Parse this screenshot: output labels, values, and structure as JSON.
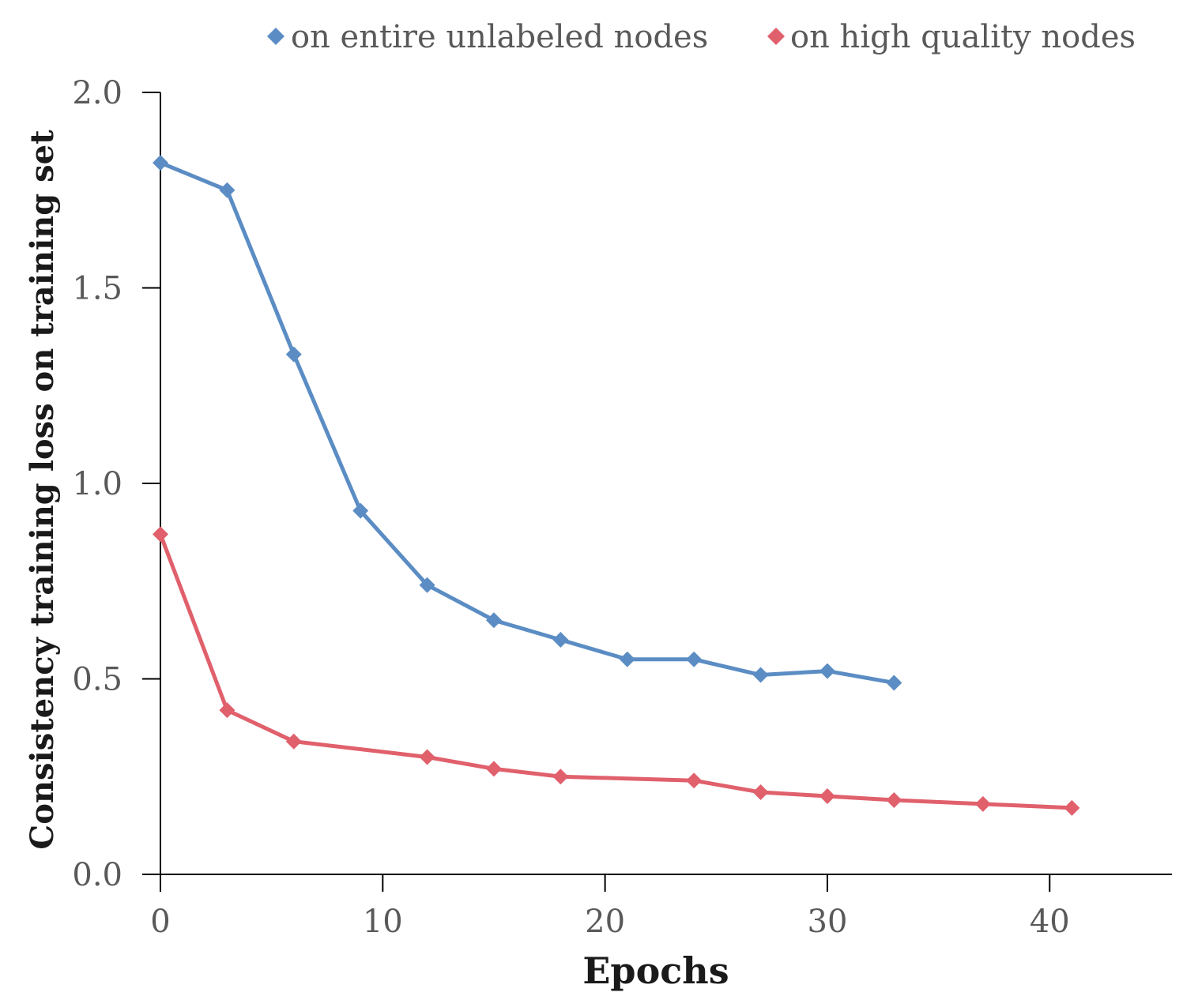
{
  "chart_data": {
    "type": "line",
    "title": "",
    "xlabel": "Epochs",
    "ylabel": "Consistency training loss on training set",
    "xlim": [
      0,
      45.5
    ],
    "ylim": [
      0,
      2.0
    ],
    "x_ticks": [
      0,
      10,
      20,
      30,
      40
    ],
    "y_ticks": [
      0.0,
      0.5,
      1.0,
      1.5,
      2.0
    ],
    "x_tick_labels": [
      "0",
      "10",
      "20",
      "30",
      "40"
    ],
    "y_tick_labels": [
      "0.0",
      "0.5",
      "1.0",
      "1.5",
      "2.0"
    ],
    "grid": false,
    "legend_position": "top",
    "marker": "diamond",
    "series": [
      {
        "name": "on entire unlabeled nodes",
        "color": "#5B8DC4",
        "x": [
          0,
          3,
          6,
          9,
          12,
          15,
          18,
          21,
          24,
          27,
          30,
          33
        ],
        "y": [
          1.82,
          1.75,
          1.33,
          0.93,
          0.74,
          0.65,
          0.6,
          0.55,
          0.55,
          0.51,
          0.52,
          0.49
        ]
      },
      {
        "name": "on high quality nodes",
        "color": "#E0606C",
        "x": [
          0,
          3,
          6,
          12,
          15,
          18,
          24,
          27,
          30,
          33,
          37,
          41
        ],
        "y": [
          0.87,
          0.42,
          0.34,
          0.3,
          0.27,
          0.25,
          0.24,
          0.21,
          0.2,
          0.19,
          0.18,
          0.17
        ]
      }
    ]
  }
}
